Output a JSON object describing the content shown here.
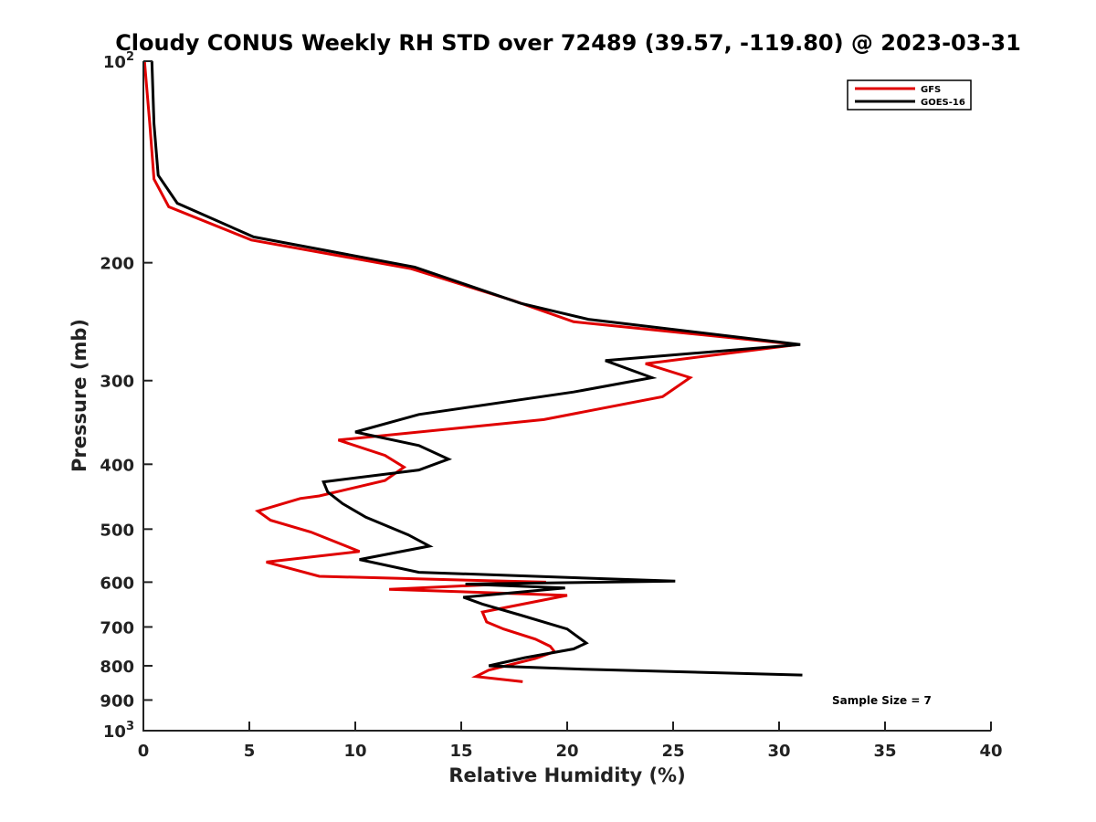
{
  "chart_data": {
    "type": "line",
    "title": "Cloudy CONUS Weekly RH STD over 72489 (39.57, -119.80) @ 2023-03-31",
    "xlabel": "Relative Humidity (%)",
    "ylabel": "Pressure (mb)",
    "xlim": [
      0,
      40
    ],
    "ylim": [
      1000,
      100
    ],
    "y_scale": "log",
    "y_reversed": true,
    "x_ticks": [
      0,
      5,
      10,
      15,
      20,
      25,
      30,
      35,
      40
    ],
    "y_ticks": [
      {
        "value": 100,
        "label": "10",
        "sup": "2"
      },
      {
        "value": 200,
        "label": "200",
        "sup": ""
      },
      {
        "value": 300,
        "label": "300",
        "sup": ""
      },
      {
        "value": 400,
        "label": "400",
        "sup": ""
      },
      {
        "value": 500,
        "label": "500",
        "sup": ""
      },
      {
        "value": 600,
        "label": "600",
        "sup": ""
      },
      {
        "value": 700,
        "label": "700",
        "sup": ""
      },
      {
        "value": 800,
        "label": "800",
        "sup": ""
      },
      {
        "value": 900,
        "label": "900",
        "sup": ""
      },
      {
        "value": 1000,
        "label": "10",
        "sup": "3"
      }
    ],
    "grid": false,
    "legend_position": "top-right",
    "annotation": "Sample Size = 7",
    "series": [
      {
        "name": "GFS",
        "color": "#e00000",
        "points": [
          [
            0.05,
            100
          ],
          [
            0.3,
            124
          ],
          [
            0.5,
            150
          ],
          [
            1.2,
            165
          ],
          [
            5.1,
            185
          ],
          [
            12.6,
            204
          ],
          [
            17.5,
            228
          ],
          [
            20.3,
            245
          ],
          [
            30.9,
            265
          ],
          [
            23.7,
            283
          ],
          [
            25.8,
            297
          ],
          [
            24.5,
            317
          ],
          [
            18.9,
            343
          ],
          [
            9.2,
            368
          ],
          [
            11.4,
            388
          ],
          [
            12.3,
            404
          ],
          [
            11.4,
            423
          ],
          [
            8.3,
            446
          ],
          [
            7.4,
            450
          ],
          [
            5.4,
            470
          ],
          [
            6.0,
            485
          ],
          [
            7.9,
            505
          ],
          [
            10.2,
            540
          ],
          [
            5.8,
            560
          ],
          [
            8.3,
            588
          ],
          [
            19.0,
            600
          ],
          [
            11.6,
            615
          ],
          [
            20.0,
            628
          ],
          [
            16.0,
            665
          ],
          [
            16.2,
            688
          ],
          [
            17.0,
            705
          ],
          [
            18.5,
            730
          ],
          [
            19.2,
            748
          ],
          [
            19.4,
            762
          ],
          [
            18.5,
            780
          ],
          [
            16.3,
            812
          ],
          [
            15.7,
            830
          ],
          [
            17.9,
            845
          ]
        ]
      },
      {
        "name": "GOES-16",
        "color": "#000000",
        "points": [
          [
            0.4,
            100
          ],
          [
            0.5,
            124
          ],
          [
            0.7,
            148
          ],
          [
            1.6,
            163
          ],
          [
            5.2,
            183
          ],
          [
            12.8,
            203
          ],
          [
            17.8,
            230
          ],
          [
            21.0,
            243
          ],
          [
            31.0,
            265
          ],
          [
            21.8,
            280
          ],
          [
            24.0,
            297
          ],
          [
            20.3,
            312
          ],
          [
            13.0,
            337
          ],
          [
            10.0,
            358
          ],
          [
            13.0,
            375
          ],
          [
            14.4,
            393
          ],
          [
            13.0,
            408
          ],
          [
            8.5,
            425
          ],
          [
            8.7,
            440
          ],
          [
            9.4,
            458
          ],
          [
            10.5,
            480
          ],
          [
            12.5,
            510
          ],
          [
            13.5,
            530
          ],
          [
            10.2,
            555
          ],
          [
            13.0,
            580
          ],
          [
            25.1,
            598
          ],
          [
            15.2,
            604
          ],
          [
            19.9,
            612
          ],
          [
            15.1,
            632
          ],
          [
            16.0,
            647
          ],
          [
            17.8,
            672
          ],
          [
            20.0,
            705
          ],
          [
            20.9,
            740
          ],
          [
            20.3,
            755
          ],
          [
            18.0,
            778
          ],
          [
            16.3,
            800
          ],
          [
            21.0,
            810
          ],
          [
            31.1,
            826
          ]
        ]
      }
    ]
  }
}
